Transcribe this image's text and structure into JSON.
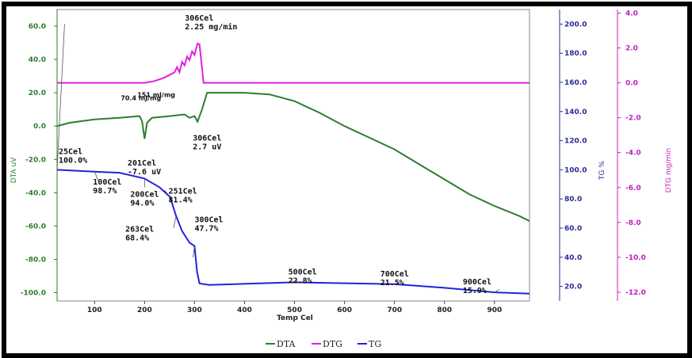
{
  "chart_data": {
    "type": "line",
    "xlabel": "Temp Cel",
    "xlim": [
      25,
      970
    ],
    "xticks": [
      "100",
      "200",
      "300",
      "400",
      "500",
      "600",
      "700",
      "800",
      "900"
    ],
    "axes": {
      "dta": {
        "label": "DTA uV",
        "ylim": [
          -105,
          70
        ],
        "ticks": [
          "60.0",
          "40.0",
          "20.0",
          "0.0",
          "-20.0",
          "-40.0",
          "-60.0",
          "-80.0",
          "-100.0"
        ],
        "color": "#2e7d2e"
      },
      "tg": {
        "label": "TG %",
        "ylim": [
          10,
          210
        ],
        "ticks": [
          "200.0",
          "180.0",
          "160.0",
          "140.0",
          "120.0",
          "100.0",
          "80.0",
          "60.0",
          "40.0",
          "20.0"
        ],
        "color": "#2a2a9a"
      },
      "dtg": {
        "label": "DTG mg/min",
        "ylim": [
          -12.5,
          4.2
        ],
        "ticks": [
          "4.0",
          "2.0",
          "0.0",
          "-2.0",
          "-4.0",
          "-6.0",
          "-8.0",
          "-10.0",
          "-12.0"
        ],
        "color": "#c020c0"
      }
    },
    "series": [
      {
        "name": "DTA",
        "axis": "dta",
        "color": "#2e7d2e",
        "points": [
          [
            25,
            0
          ],
          [
            50,
            2
          ],
          [
            100,
            4
          ],
          [
            150,
            5
          ],
          [
            190,
            6
          ],
          [
            195,
            3
          ],
          [
            200,
            -7.6
          ],
          [
            205,
            2
          ],
          [
            215,
            5
          ],
          [
            250,
            6
          ],
          [
            280,
            7
          ],
          [
            290,
            5
          ],
          [
            300,
            6
          ],
          [
            306,
            2.7
          ],
          [
            315,
            10
          ],
          [
            325,
            20
          ],
          [
            350,
            20
          ],
          [
            400,
            20
          ],
          [
            450,
            19
          ],
          [
            500,
            15
          ],
          [
            550,
            8
          ],
          [
            600,
            0
          ],
          [
            650,
            -7
          ],
          [
            700,
            -14
          ],
          [
            750,
            -23
          ],
          [
            800,
            -32
          ],
          [
            850,
            -41
          ],
          [
            900,
            -48
          ],
          [
            950,
            -54
          ],
          [
            970,
            -57
          ]
        ]
      },
      {
        "name": "DTG",
        "axis": "dtg",
        "color": "#e020e0",
        "points": [
          [
            25,
            0
          ],
          [
            100,
            0
          ],
          [
            200,
            0
          ],
          [
            220,
            0.1
          ],
          [
            240,
            0.3
          ],
          [
            260,
            0.6
          ],
          [
            265,
            0.9
          ],
          [
            270,
            0.6
          ],
          [
            275,
            1.2
          ],
          [
            280,
            1.0
          ],
          [
            285,
            1.5
          ],
          [
            290,
            1.3
          ],
          [
            295,
            1.8
          ],
          [
            300,
            1.6
          ],
          [
            306,
            2.25
          ],
          [
            310,
            2.2
          ],
          [
            318,
            0
          ],
          [
            330,
            0
          ],
          [
            500,
            0
          ],
          [
            700,
            0
          ],
          [
            970,
            0
          ]
        ]
      },
      {
        "name": "TG",
        "axis": "tg",
        "color": "#2222dd",
        "points": [
          [
            25,
            100
          ],
          [
            100,
            98.7
          ],
          [
            150,
            98
          ],
          [
            200,
            94
          ],
          [
            230,
            88
          ],
          [
            251,
            81.4
          ],
          [
            263,
            68.4
          ],
          [
            275,
            58
          ],
          [
            290,
            50
          ],
          [
            300,
            47.7
          ],
          [
            305,
            30
          ],
          [
            310,
            22
          ],
          [
            330,
            21
          ],
          [
            500,
            22.8
          ],
          [
            700,
            21.5
          ],
          [
            800,
            19
          ],
          [
            900,
            15.9
          ],
          [
            970,
            15
          ]
        ]
      }
    ],
    "annotations": [
      {
        "text": "25Cel",
        "x": 25,
        "axis": "tg",
        "y": 100
      },
      {
        "text": "100.0%",
        "x": 25,
        "axis": "tg",
        "y": 100
      },
      {
        "text": "100Cel",
        "x": 100,
        "axis": "tg",
        "y": 98.7
      },
      {
        "text": "98.7%",
        "x": 100,
        "axis": "tg",
        "y": 98.7
      },
      {
        "text": "200Cel",
        "x": 200,
        "axis": "tg",
        "y": 94
      },
      {
        "text": "94.0%",
        "x": 200,
        "axis": "tg",
        "y": 94
      },
      {
        "text": "251Cel",
        "x": 251,
        "axis": "tg",
        "y": 81.4
      },
      {
        "text": "81.4%",
        "x": 251,
        "axis": "tg",
        "y": 81.4
      },
      {
        "text": "263Cel",
        "x": 263,
        "axis": "tg",
        "y": 68.4
      },
      {
        "text": "68.4%",
        "x": 263,
        "axis": "tg",
        "y": 68.4
      },
      {
        "text": "300Cel",
        "x": 300,
        "axis": "tg",
        "y": 47.7
      },
      {
        "text": "47.7%",
        "x": 300,
        "axis": "tg",
        "y": 47.7
      },
      {
        "text": "500Cel",
        "x": 500,
        "axis": "tg",
        "y": 22.8
      },
      {
        "text": "22.8%",
        "x": 500,
        "axis": "tg",
        "y": 22.8
      },
      {
        "text": "700Cel",
        "x": 700,
        "axis": "tg",
        "y": 21.5
      },
      {
        "text": "21.5%",
        "x": 700,
        "axis": "tg",
        "y": 21.5
      },
      {
        "text": "900Cel",
        "x": 900,
        "axis": "tg",
        "y": 15.9
      },
      {
        "text": "15.9%",
        "x": 900,
        "axis": "tg",
        "y": 15.9
      },
      {
        "text": "201Cel",
        "x": 201,
        "axis": "dta",
        "y": -7.6
      },
      {
        "text": "-7.6 uV",
        "x": 201,
        "axis": "dta",
        "y": -7.6
      },
      {
        "text": "306Cel",
        "x": 306,
        "axis": "dta",
        "y": 2.7
      },
      {
        "text": "2.7 uV",
        "x": 306,
        "axis": "dta",
        "y": 2.7
      },
      {
        "text": "306Cel",
        "x": 306,
        "axis": "dtg",
        "y": 2.25
      },
      {
        "text": "2.25 mg/min",
        "x": 306,
        "axis": "dtg",
        "y": 2.25
      },
      {
        "text": "70.4 mJ/mg",
        "x": 200,
        "axis": "dta",
        "y": 5
      },
      {
        "text": "151 mJ/mg",
        "x": 306,
        "axis": "dta",
        "y": 15
      }
    ],
    "legend": [
      "DTA",
      "DTG",
      "TG"
    ],
    "legend_position": "bottom"
  }
}
